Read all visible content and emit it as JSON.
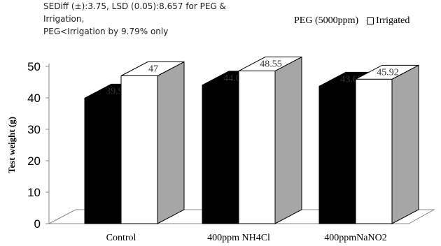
{
  "annotation": {
    "line1": "SEDiff (±):3.75, LSD (0.05):8.657 for PEG & Irrigation,",
    "line2": "PEG<Irrigation by 9.79% only"
  },
  "legend": {
    "peg": "PEG (5000ppm)",
    "irrigated": "Irrigated"
  },
  "colors": {
    "peg_front": "#000000",
    "peg_side": "#000000",
    "irrigated_front": "#ffffff",
    "irrigated_side": "#a6a6a6"
  },
  "chart_data": {
    "type": "bar",
    "title": "",
    "xlabel": "",
    "ylabel": "Test weight (g)",
    "ylim": [
      0,
      50
    ],
    "yticks": [
      0,
      10,
      20,
      30,
      40,
      50
    ],
    "categories": [
      "Control",
      "400ppm NH4Cl",
      "400ppmNaNO2"
    ],
    "series": [
      {
        "name": "PEG (5000ppm)",
        "values": [
          39.91,
          44.03,
          43.69
        ],
        "labels": [
          "39.91",
          "44.03",
          "43.69"
        ]
      },
      {
        "name": "Irrigated",
        "values": [
          47,
          48.55,
          45.92
        ],
        "labels": [
          "47",
          "48.55",
          "45.92"
        ]
      }
    ],
    "grid": false,
    "legend_position": "top-right",
    "style": "3d"
  }
}
